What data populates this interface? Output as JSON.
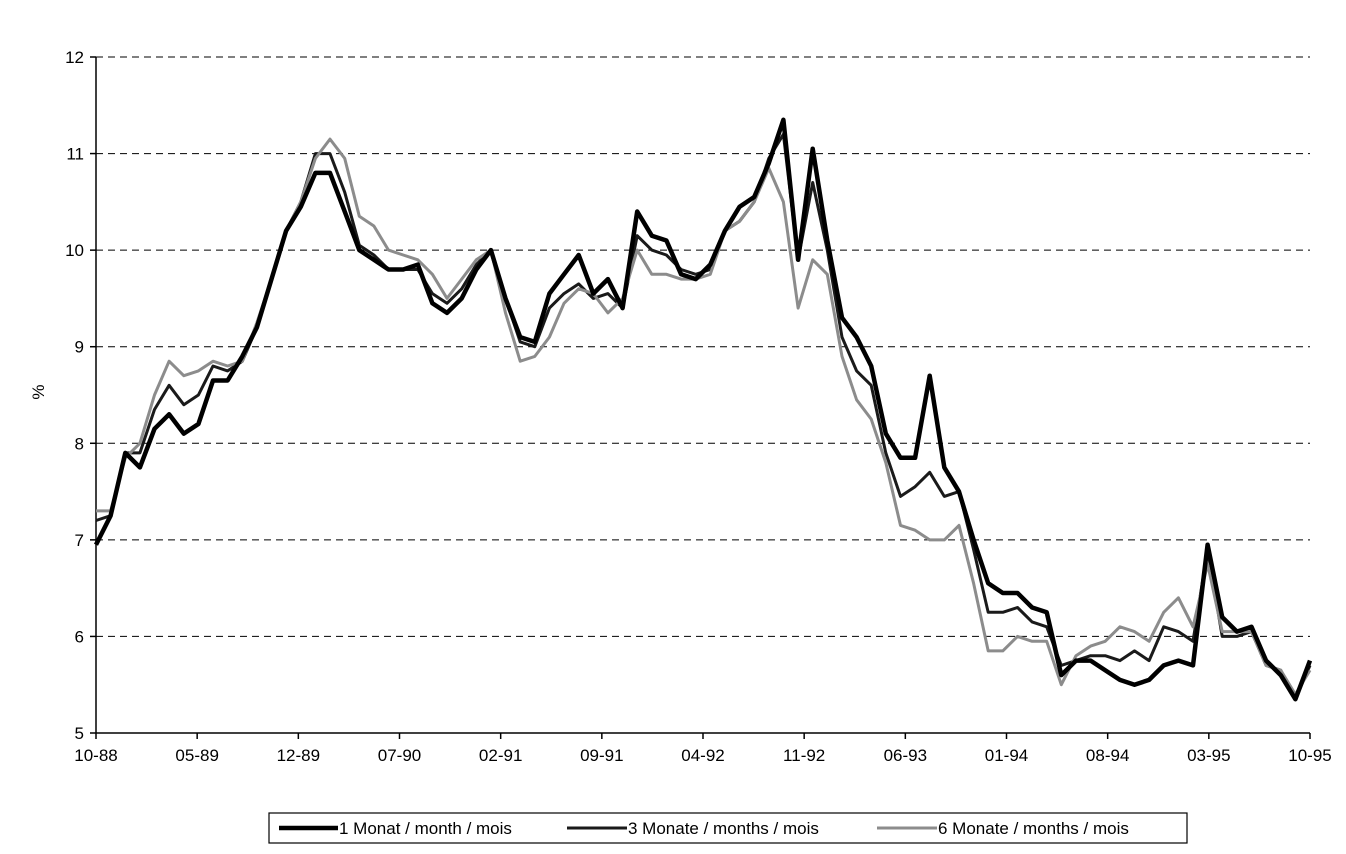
{
  "chart_data": {
    "type": "line",
    "title": "",
    "xlabel": "",
    "ylabel": "%",
    "ylim": [
      5,
      12
    ],
    "yticks": [
      "5",
      "6",
      "7",
      "8",
      "9",
      "10",
      "11",
      "12"
    ],
    "x_tick_labels": [
      "10-88",
      "05-89",
      "12-89",
      "07-90",
      "02-91",
      "09-91",
      "04-92",
      "11-92",
      "06-93",
      "01-94",
      "08-94",
      "03-95",
      "10-95"
    ],
    "x_start": "10-88",
    "x_end": "10-95",
    "grid": "horizontal dashed",
    "legend_position": "bottom",
    "series": [
      {
        "name": "1 Monat / month / mois",
        "color": "#000000",
        "values": [
          6.95,
          7.25,
          7.9,
          7.75,
          8.15,
          8.3,
          8.1,
          8.2,
          8.65,
          8.65,
          8.9,
          9.2,
          9.7,
          10.2,
          10.45,
          10.8,
          10.8,
          10.4,
          10.0,
          9.9,
          9.8,
          9.8,
          9.85,
          9.45,
          9.35,
          9.5,
          9.8,
          10.0,
          9.5,
          9.1,
          9.05,
          9.55,
          9.75,
          9.95,
          9.55,
          9.7,
          9.4,
          10.4,
          10.15,
          10.1,
          9.75,
          9.7,
          9.85,
          10.2,
          10.45,
          10.55,
          10.9,
          11.35,
          9.9,
          11.05,
          10.1,
          9.3,
          9.1,
          8.8,
          8.1,
          7.85,
          7.85,
          8.7,
          7.75,
          7.5,
          7.0,
          6.55,
          6.45,
          6.45,
          6.3,
          6.25,
          5.6,
          5.75,
          5.75,
          5.65,
          5.55,
          5.5,
          5.55,
          5.7,
          5.75,
          5.7,
          6.95,
          6.2,
          6.05,
          6.1,
          5.75,
          5.6,
          5.35,
          5.75
        ]
      },
      {
        "name": "3 Monate / months / mois",
        "color": "#1a1a1a",
        "values": [
          7.2,
          7.25,
          7.9,
          7.9,
          8.35,
          8.6,
          8.4,
          8.5,
          8.8,
          8.75,
          8.85,
          9.2,
          9.7,
          10.2,
          10.5,
          11.0,
          11.0,
          10.6,
          10.05,
          9.95,
          9.8,
          9.8,
          9.8,
          9.55,
          9.45,
          9.6,
          9.85,
          10.0,
          9.5,
          9.05,
          9.0,
          9.4,
          9.55,
          9.65,
          9.5,
          9.55,
          9.4,
          10.15,
          10.0,
          9.95,
          9.8,
          9.75,
          9.8,
          10.2,
          10.3,
          10.5,
          10.95,
          11.2,
          9.9,
          10.7,
          10.0,
          9.1,
          8.75,
          8.6,
          7.9,
          7.45,
          7.55,
          7.7,
          7.45,
          7.5,
          6.9,
          6.25,
          6.25,
          6.3,
          6.15,
          6.1,
          5.7,
          5.75,
          5.8,
          5.8,
          5.75,
          5.85,
          5.75,
          6.1,
          6.05,
          5.95,
          6.9,
          6.0,
          6.0,
          6.05,
          5.7,
          5.65,
          5.35,
          5.7
        ]
      },
      {
        "name": "6 Monate / months / mois",
        "color": "#8c8c8c",
        "values": [
          7.3,
          7.3,
          7.85,
          8.0,
          8.5,
          8.85,
          8.7,
          8.75,
          8.85,
          8.8,
          8.85,
          9.25,
          9.7,
          10.2,
          10.5,
          10.95,
          11.15,
          10.95,
          10.35,
          10.25,
          10.0,
          9.95,
          9.9,
          9.75,
          9.5,
          9.7,
          9.9,
          10.0,
          9.35,
          8.85,
          8.9,
          9.1,
          9.45,
          9.6,
          9.55,
          9.35,
          9.5,
          10.0,
          9.75,
          9.75,
          9.7,
          9.7,
          9.75,
          10.2,
          10.3,
          10.5,
          10.85,
          10.5,
          9.4,
          9.9,
          9.75,
          8.9,
          8.45,
          8.25,
          7.8,
          7.15,
          7.1,
          7.0,
          7.0,
          7.15,
          6.55,
          5.85,
          5.85,
          6.0,
          5.95,
          5.95,
          5.5,
          5.8,
          5.9,
          5.95,
          6.1,
          6.05,
          5.95,
          6.25,
          6.4,
          6.1,
          6.75,
          6.05,
          6.05,
          6.05,
          5.7,
          5.65,
          5.4,
          5.65
        ]
      }
    ]
  }
}
